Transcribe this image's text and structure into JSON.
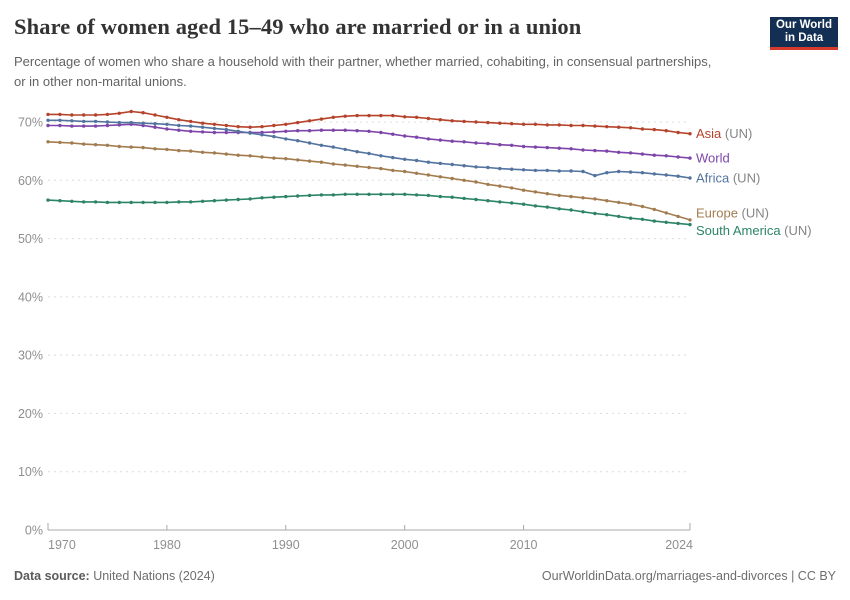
{
  "header": {
    "title": "Share of women aged 15–49 who are married or in a union",
    "subtitle": "Percentage of women who share a household with their partner, whether married, cohabiting, in consensual partnerships, or in other non-marital unions.",
    "logo": {
      "line1": "Our World",
      "line2": "in Data",
      "bg_color": "#132f53",
      "accent_color": "#d73a2a"
    }
  },
  "footer": {
    "source_label": "Data source:",
    "source_value": " United Nations (2024)",
    "link": "OurWorldinData.org/marriages-and-divorces | CC BY"
  },
  "chart_data": {
    "type": "line",
    "title": "Share of women aged 15–49 who are married or in a union",
    "xlabel": "",
    "ylabel": "",
    "xlim": [
      1970,
      2024
    ],
    "ylim": [
      0,
      75
    ],
    "grid": "horizontal-dashed",
    "legend_position": "right-of-line-ends",
    "xticks": [
      1970,
      1980,
      1990,
      2000,
      2010,
      2024
    ],
    "yticks": [
      0,
      10,
      20,
      30,
      40,
      50,
      60,
      70
    ],
    "ytick_suffix": "%",
    "colors": {
      "grid": "#dcdcdc",
      "axis": "#a9a9a9",
      "tick_label": "#8f8f8f",
      "un_suffix": "#858585"
    },
    "x": [
      1970,
      1971,
      1972,
      1973,
      1974,
      1975,
      1976,
      1977,
      1978,
      1979,
      1980,
      1981,
      1982,
      1983,
      1984,
      1985,
      1986,
      1987,
      1988,
      1989,
      1990,
      1991,
      1992,
      1993,
      1994,
      1995,
      1996,
      1997,
      1998,
      1999,
      2000,
      2001,
      2002,
      2003,
      2004,
      2005,
      2006,
      2007,
      2008,
      2009,
      2010,
      2011,
      2012,
      2013,
      2014,
      2015,
      2016,
      2017,
      2018,
      2019,
      2020,
      2021,
      2022,
      2023,
      2024
    ],
    "series": [
      {
        "id": "asia-un",
        "name": "Asia (UN)",
        "short_label": "Asia",
        "suffix": "(UN)",
        "color": "#b5432b",
        "values": [
          71.3,
          71.3,
          71.2,
          71.2,
          71.2,
          71.3,
          71.5,
          71.8,
          71.6,
          71.2,
          70.8,
          70.4,
          70.1,
          69.8,
          69.6,
          69.4,
          69.2,
          69.1,
          69.2,
          69.4,
          69.6,
          69.9,
          70.2,
          70.5,
          70.8,
          71.0,
          71.1,
          71.1,
          71.1,
          71.1,
          70.9,
          70.8,
          70.6,
          70.4,
          70.2,
          70.1,
          70.0,
          69.9,
          69.8,
          69.7,
          69.6,
          69.6,
          69.5,
          69.5,
          69.4,
          69.4,
          69.3,
          69.2,
          69.1,
          69.0,
          68.8,
          68.7,
          68.5,
          68.2,
          68.0
        ]
      },
      {
        "id": "world",
        "name": "World",
        "short_label": "World",
        "suffix": "",
        "color": "#7d44a9",
        "values": [
          69.4,
          69.4,
          69.3,
          69.3,
          69.3,
          69.4,
          69.5,
          69.6,
          69.4,
          69.1,
          68.8,
          68.6,
          68.4,
          68.3,
          68.2,
          68.2,
          68.2,
          68.2,
          68.2,
          68.3,
          68.4,
          68.5,
          68.5,
          68.6,
          68.6,
          68.6,
          68.5,
          68.4,
          68.2,
          67.9,
          67.6,
          67.4,
          67.1,
          66.9,
          66.7,
          66.6,
          66.4,
          66.3,
          66.1,
          66.0,
          65.8,
          65.7,
          65.6,
          65.5,
          65.4,
          65.2,
          65.1,
          65.0,
          64.8,
          64.7,
          64.5,
          64.3,
          64.2,
          64.0,
          63.8
        ]
      },
      {
        "id": "africa-un",
        "name": "Africa (UN)",
        "short_label": "Africa",
        "suffix": "(UN)",
        "color": "#53739f",
        "values": [
          70.3,
          70.3,
          70.2,
          70.1,
          70.1,
          70.0,
          69.9,
          69.9,
          69.8,
          69.7,
          69.6,
          69.4,
          69.3,
          69.1,
          68.9,
          68.7,
          68.4,
          68.1,
          67.8,
          67.5,
          67.1,
          66.8,
          66.4,
          66.0,
          65.7,
          65.3,
          64.9,
          64.6,
          64.2,
          63.9,
          63.6,
          63.4,
          63.1,
          62.9,
          62.7,
          62.5,
          62.3,
          62.2,
          62.0,
          61.9,
          61.8,
          61.7,
          61.7,
          61.6,
          61.6,
          61.5,
          60.8,
          61.3,
          61.5,
          61.4,
          61.3,
          61.1,
          60.9,
          60.7,
          60.4
        ]
      },
      {
        "id": "europe-un",
        "name": "Europe (UN)",
        "short_label": "Europe",
        "suffix": "(UN)",
        "color": "#a27c4f",
        "values": [
          66.6,
          66.5,
          66.4,
          66.2,
          66.1,
          66.0,
          65.8,
          65.7,
          65.6,
          65.4,
          65.3,
          65.1,
          65.0,
          64.8,
          64.7,
          64.5,
          64.3,
          64.2,
          64.0,
          63.8,
          63.7,
          63.5,
          63.3,
          63.1,
          62.8,
          62.6,
          62.4,
          62.2,
          62.0,
          61.7,
          61.5,
          61.2,
          60.9,
          60.6,
          60.3,
          60.0,
          59.7,
          59.3,
          59.0,
          58.7,
          58.3,
          58.0,
          57.7,
          57.4,
          57.2,
          57.0,
          56.8,
          56.5,
          56.2,
          55.9,
          55.5,
          55.0,
          54.4,
          53.8,
          53.2
        ]
      },
      {
        "id": "south-america-un",
        "name": "South America (UN)",
        "short_label": "South America",
        "suffix": "(UN)",
        "color": "#2c8465",
        "values": [
          56.6,
          56.5,
          56.4,
          56.3,
          56.3,
          56.2,
          56.2,
          56.2,
          56.2,
          56.2,
          56.2,
          56.3,
          56.3,
          56.4,
          56.5,
          56.6,
          56.7,
          56.8,
          57.0,
          57.1,
          57.2,
          57.3,
          57.4,
          57.5,
          57.5,
          57.6,
          57.6,
          57.6,
          57.6,
          57.6,
          57.6,
          57.5,
          57.4,
          57.2,
          57.1,
          56.9,
          56.7,
          56.5,
          56.3,
          56.1,
          55.9,
          55.6,
          55.4,
          55.1,
          54.9,
          54.6,
          54.3,
          54.1,
          53.8,
          53.5,
          53.3,
          53.0,
          52.8,
          52.6,
          52.4
        ]
      }
    ]
  }
}
